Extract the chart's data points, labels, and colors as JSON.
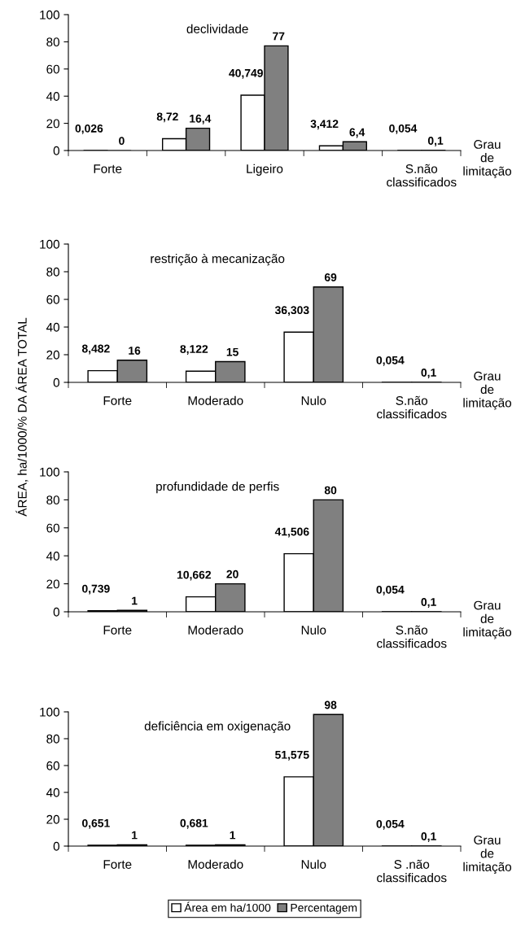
{
  "chart_data": [
    {
      "type": "bar",
      "title": "declividade",
      "xlabel": "Grau\nde\nlimitação",
      "categories": [
        "Forte",
        null,
        "Ligeiro",
        null,
        "S.não\nclassificados"
      ],
      "ylim": [
        0,
        100
      ],
      "yticks": [
        0,
        20,
        40,
        60,
        80,
        100
      ],
      "grid": false,
      "legend": false,
      "series": [
        {
          "color": "#ffffff",
          "values": [
            0.026,
            8.72,
            40.749,
            3.412,
            0.054
          ],
          "value_labels": [
            "0,026",
            "8,72",
            "40,749",
            "3,412",
            "0,054"
          ]
        },
        {
          "color": "#808080",
          "values": [
            0,
            16.4,
            77,
            6.4,
            0.1
          ],
          "value_labels": [
            "0",
            "16,4",
            "77",
            "6,4",
            "0,1"
          ]
        }
      ]
    },
    {
      "type": "bar",
      "title": "restrição à mecanização",
      "xlabel": "Grau\nde\nlimitação",
      "ylabel": "ÁREA, ha/1000/% DA ÁREA TOTAL",
      "categories": [
        "Forte",
        "Moderado",
        "Nulo",
        "S.não\nclassificados"
      ],
      "ylim": [
        0,
        100
      ],
      "yticks": [
        0,
        20,
        40,
        60,
        80,
        100
      ],
      "grid": false,
      "legend": false,
      "series": [
        {
          "color": "#ffffff",
          "values": [
            8.482,
            8.122,
            36.303,
            0.054
          ],
          "value_labels": [
            "8,482",
            "8,122",
            "36,303",
            "0,054"
          ]
        },
        {
          "color": "#808080",
          "values": [
            16,
            15,
            69,
            0.1
          ],
          "value_labels": [
            "16",
            "15",
            "69",
            "0,1"
          ]
        }
      ]
    },
    {
      "type": "bar",
      "title": "profundidade de perfis",
      "xlabel": "Grau\nde\nlimitação",
      "categories": [
        "Forte",
        "Moderado",
        "Nulo",
        "S.não\nclassificados"
      ],
      "ylim": [
        0,
        100
      ],
      "yticks": [
        0,
        20,
        40,
        60,
        80,
        100
      ],
      "grid": false,
      "legend": false,
      "series": [
        {
          "color": "#ffffff",
          "values": [
            0.739,
            10.662,
            41.506,
            0.054
          ],
          "value_labels": [
            "0,739",
            "10,662",
            "41,506",
            "0,054"
          ]
        },
        {
          "color": "#808080",
          "values": [
            1,
            20,
            80,
            0.1
          ],
          "value_labels": [
            "1",
            "20",
            "80",
            "0,1"
          ]
        }
      ]
    },
    {
      "type": "bar",
      "title": "deficiência em oxigenação",
      "xlabel": "Grau\nde\nlimitação",
      "categories": [
        "Forte",
        "Moderado",
        "Nulo",
        "S .não\nclassificados"
      ],
      "ylim": [
        0,
        100
      ],
      "yticks": [
        0,
        20,
        40,
        60,
        80,
        100
      ],
      "grid": false,
      "legend": "bottom",
      "series": [
        {
          "name": "Área em ha/1000",
          "color": "#ffffff",
          "values": [
            0.651,
            0.681,
            51.575,
            0.054
          ],
          "value_labels": [
            "0,651",
            "0,681",
            "51,575",
            "0,054"
          ]
        },
        {
          "name": "Percentagem",
          "color": "#808080",
          "values": [
            1,
            1,
            98,
            0.1
          ],
          "value_labels": [
            "1",
            "1",
            "98",
            "0,1"
          ]
        }
      ]
    }
  ]
}
